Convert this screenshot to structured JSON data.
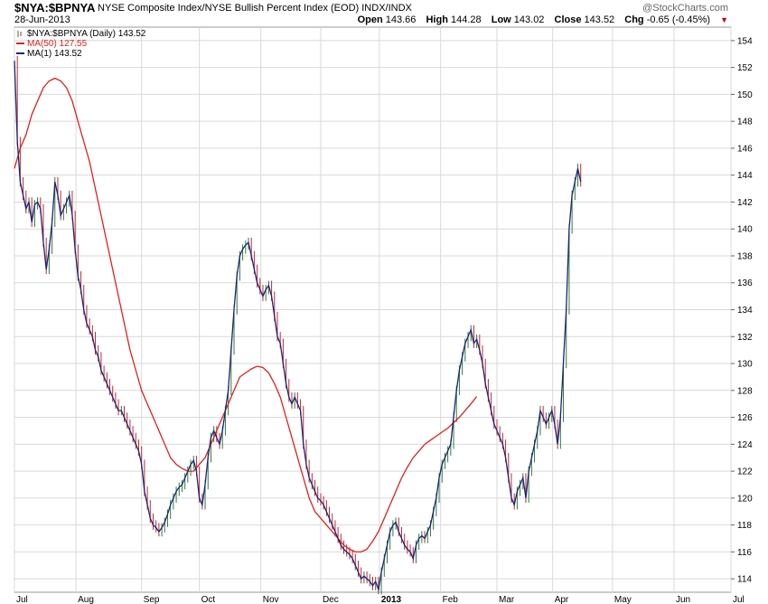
{
  "header": {
    "symbol": "$NYA:$BPNYA",
    "name": "NYSE Composite Index/NYSE Bullish Percent Index (EOD)",
    "exchange": "INDX/INDX",
    "date": "28-Jun-2013",
    "credit": "@StockCharts.com",
    "open_label": "Open",
    "open": "143.66",
    "high_label": "High",
    "high": "144.28",
    "low_label": "Low",
    "low": "143.02",
    "close_label": "Close",
    "close": "143.52",
    "chg_label": "Chg",
    "chg": "-0.65 (-0.45%)"
  },
  "legend": [
    {
      "text": "$NYA:$BPNYA (Daily) 143.52",
      "color": "#1a237e",
      "icon": "ohlc-bar-icon"
    },
    {
      "text": "MA(50) 127.55",
      "color": "#e0201c",
      "icon": "line-swatch-icon"
    },
    {
      "text": "MA(1) 143.52",
      "color": "#1a237e",
      "icon": "line-swatch-icon"
    }
  ],
  "chart_data": {
    "type": "line",
    "title": "$NYA:$BPNYA",
    "ylim": [
      113,
      155
    ],
    "y_ticks": [
      114,
      116,
      118,
      120,
      122,
      124,
      126,
      128,
      130,
      132,
      134,
      136,
      138,
      140,
      142,
      144,
      146,
      148,
      150,
      152,
      154
    ],
    "x_ticks": [
      {
        "label": "Jul",
        "t": 0
      },
      {
        "label": "Aug",
        "t": 21.3
      },
      {
        "label": "Sep",
        "t": 44.0
      },
      {
        "label": "Oct",
        "t": 64.0
      },
      {
        "label": "Nov",
        "t": 85.3
      },
      {
        "label": "Dec",
        "t": 106.0
      },
      {
        "label": "2013",
        "t": 126.3,
        "bold": true
      },
      {
        "label": "Feb",
        "t": 147.5
      },
      {
        "label": "Mar",
        "t": 167.0
      },
      {
        "label": "Apr",
        "t": 186.3
      },
      {
        "label": "May",
        "t": 207.0
      },
      {
        "label": "Jun",
        "t": 228.3
      },
      {
        "label": "Jul",
        "t": 248.0
      }
    ],
    "grid": true,
    "series": [
      {
        "name": "MA(1)",
        "color": "#1a237e",
        "points": [
          [
            0,
            152.5
          ],
          [
            1,
            146.5
          ],
          [
            2,
            143.5
          ],
          [
            3,
            142.5
          ],
          [
            4,
            141.5
          ],
          [
            5,
            142.0
          ],
          [
            6,
            140.5
          ],
          [
            7,
            141.8
          ],
          [
            8,
            142.0
          ],
          [
            9,
            141.5
          ],
          [
            10,
            139.0
          ],
          [
            11,
            137.0
          ],
          [
            12,
            138.5
          ],
          [
            13,
            140.5
          ],
          [
            14,
            143.5
          ],
          [
            15,
            142.5
          ],
          [
            16,
            141.0
          ],
          [
            17,
            141.5
          ],
          [
            18,
            142.0
          ],
          [
            19,
            142.5
          ],
          [
            20,
            141.0
          ],
          [
            21,
            138.5
          ],
          [
            22,
            136.5
          ],
          [
            23,
            135.5
          ],
          [
            24,
            134.0
          ],
          [
            25,
            133.0
          ],
          [
            26,
            132.5
          ],
          [
            27,
            132.0
          ],
          [
            28,
            131.0
          ],
          [
            29,
            130.5
          ],
          [
            30,
            129.5
          ],
          [
            31,
            129.0
          ],
          [
            32,
            128.5
          ],
          [
            33,
            128.0
          ],
          [
            34,
            127.5
          ],
          [
            35,
            127.0
          ],
          [
            36,
            126.5
          ],
          [
            37,
            126.5
          ],
          [
            38,
            126.0
          ],
          [
            39,
            125.5
          ],
          [
            40,
            125.0
          ],
          [
            41,
            124.5
          ],
          [
            42,
            124.0
          ],
          [
            43,
            123.5
          ],
          [
            44,
            122.5
          ],
          [
            45,
            120.5
          ],
          [
            46,
            119.5
          ],
          [
            47,
            118.5
          ],
          [
            48,
            118.0
          ],
          [
            49,
            117.8
          ],
          [
            50,
            117.5
          ],
          [
            51,
            117.8
          ],
          [
            52,
            118.2
          ],
          [
            53,
            118.8
          ],
          [
            54,
            119.5
          ],
          [
            55,
            120.0
          ],
          [
            56,
            120.5
          ],
          [
            57,
            120.8
          ],
          [
            58,
            121.0
          ],
          [
            59,
            121.5
          ],
          [
            60,
            122.0
          ],
          [
            61,
            122.5
          ],
          [
            62,
            122.8
          ],
          [
            63,
            122.0
          ],
          [
            64,
            120.0
          ],
          [
            65,
            119.5
          ],
          [
            66,
            121.0
          ],
          [
            67,
            123.0
          ],
          [
            68,
            124.5
          ],
          [
            69,
            125.0
          ],
          [
            70,
            124.5
          ],
          [
            71,
            124.0
          ],
          [
            72,
            125.0
          ],
          [
            73,
            126.5
          ],
          [
            74,
            128.0
          ],
          [
            75,
            131.0
          ],
          [
            76,
            134.0
          ],
          [
            77,
            136.5
          ],
          [
            78,
            138.0
          ],
          [
            79,
            138.5
          ],
          [
            80,
            138.8
          ],
          [
            81,
            139.0
          ],
          [
            82,
            138.0
          ],
          [
            83,
            137.0
          ],
          [
            84,
            136.0
          ],
          [
            85,
            135.5
          ],
          [
            86,
            135.0
          ],
          [
            87,
            135.5
          ],
          [
            88,
            135.8
          ],
          [
            89,
            135.0
          ],
          [
            90,
            133.5
          ],
          [
            91,
            132.0
          ],
          [
            92,
            131.5
          ],
          [
            93,
            130.0
          ],
          [
            94,
            128.5
          ],
          [
            95,
            127.5
          ],
          [
            96,
            127.0
          ],
          [
            97,
            127.5
          ],
          [
            98,
            127.0
          ],
          [
            99,
            126.5
          ],
          [
            100,
            124.0
          ],
          [
            101,
            122.5
          ],
          [
            102,
            121.5
          ],
          [
            103,
            121.0
          ],
          [
            104,
            120.5
          ],
          [
            105,
            120.0
          ],
          [
            106,
            119.8
          ],
          [
            107,
            119.5
          ],
          [
            108,
            119.0
          ],
          [
            109,
            118.5
          ],
          [
            110,
            118.0
          ],
          [
            111,
            117.5
          ],
          [
            112,
            117.0
          ],
          [
            113,
            116.5
          ],
          [
            114,
            116.2
          ],
          [
            115,
            116.0
          ],
          [
            116,
            115.8
          ],
          [
            117,
            115.5
          ],
          [
            118,
            115.0
          ],
          [
            119,
            114.5
          ],
          [
            120,
            114.0
          ],
          [
            121,
            114.2
          ],
          [
            122,
            114.0
          ],
          [
            123,
            113.8
          ],
          [
            124,
            113.5
          ],
          [
            125,
            113.8
          ],
          [
            126,
            113.2
          ],
          [
            127,
            114.5
          ],
          [
            128,
            115.5
          ],
          [
            129,
            116.5
          ],
          [
            130,
            117.5
          ],
          [
            131,
            118.0
          ],
          [
            132,
            118.2
          ],
          [
            133,
            117.5
          ],
          [
            134,
            117.0
          ],
          [
            135,
            116.5
          ],
          [
            136,
            116.2
          ],
          [
            137,
            116.0
          ],
          [
            138,
            115.5
          ],
          [
            139,
            116.5
          ],
          [
            140,
            117.0
          ],
          [
            141,
            117.2
          ],
          [
            142,
            117.0
          ],
          [
            143,
            117.5
          ],
          [
            144,
            118.0
          ],
          [
            145,
            119.0
          ],
          [
            146,
            120.0
          ],
          [
            147,
            121.5
          ],
          [
            148,
            122.5
          ],
          [
            149,
            123.0
          ],
          [
            150,
            123.5
          ],
          [
            151,
            124.0
          ],
          [
            152,
            126.0
          ],
          [
            153,
            128.0
          ],
          [
            154,
            129.5
          ],
          [
            155,
            130.5
          ],
          [
            156,
            131.5
          ],
          [
            157,
            132.0
          ],
          [
            158,
            132.5
          ],
          [
            159,
            131.5
          ],
          [
            160,
            131.8
          ],
          [
            161,
            131.0
          ],
          [
            162,
            130.0
          ],
          [
            163,
            128.5
          ],
          [
            164,
            127.5
          ],
          [
            165,
            126.5
          ],
          [
            166,
            125.5
          ],
          [
            167,
            125.0
          ],
          [
            168,
            124.5
          ],
          [
            169,
            124.0
          ],
          [
            170,
            123.0
          ],
          [
            171,
            121.5
          ],
          [
            172,
            120.0
          ],
          [
            173,
            119.5
          ],
          [
            174,
            120.5
          ],
          [
            175,
            121.0
          ],
          [
            176,
            121.5
          ],
          [
            177,
            120.0
          ],
          [
            178,
            122.0
          ],
          [
            179,
            123.0
          ],
          [
            180,
            124.0
          ],
          [
            181,
            125.0
          ],
          [
            182,
            126.5
          ],
          [
            183,
            126.0
          ],
          [
            184,
            125.5
          ],
          [
            185,
            126.0
          ],
          [
            186,
            126.5
          ],
          [
            187,
            125.5
          ],
          [
            188,
            124.0
          ],
          [
            189,
            126.0
          ],
          [
            190,
            130.0
          ],
          [
            191,
            134.0
          ],
          [
            192,
            140.0
          ],
          [
            193,
            142.5
          ],
          [
            194,
            143.5
          ],
          [
            195,
            144.5
          ],
          [
            196,
            143.5
          ]
        ]
      },
      {
        "name": "MA(50)",
        "color": "#e0201c",
        "points": [
          [
            0,
            144.5
          ],
          [
            2,
            146.0
          ],
          [
            4,
            147.0
          ],
          [
            6,
            148.5
          ],
          [
            8,
            149.5
          ],
          [
            10,
            150.5
          ],
          [
            12,
            151.0
          ],
          [
            14,
            151.2
          ],
          [
            16,
            151.0
          ],
          [
            18,
            150.5
          ],
          [
            20,
            149.5
          ],
          [
            22,
            148.0
          ],
          [
            24,
            146.5
          ],
          [
            26,
            145.0
          ],
          [
            28,
            143.0
          ],
          [
            30,
            141.0
          ],
          [
            32,
            139.0
          ],
          [
            34,
            137.0
          ],
          [
            36,
            135.0
          ],
          [
            38,
            133.0
          ],
          [
            40,
            131.0
          ],
          [
            42,
            129.5
          ],
          [
            44,
            128.0
          ],
          [
            46,
            127.0
          ],
          [
            48,
            126.0
          ],
          [
            50,
            125.0
          ],
          [
            52,
            124.0
          ],
          [
            54,
            123.0
          ],
          [
            56,
            122.5
          ],
          [
            58,
            122.2
          ],
          [
            60,
            122.0
          ],
          [
            62,
            122.0
          ],
          [
            64,
            122.5
          ],
          [
            66,
            123.0
          ],
          [
            68,
            124.0
          ],
          [
            70,
            125.0
          ],
          [
            72,
            126.0
          ],
          [
            74,
            127.0
          ],
          [
            76,
            128.0
          ],
          [
            78,
            129.0
          ],
          [
            80,
            129.3
          ],
          [
            82,
            129.6
          ],
          [
            84,
            129.8
          ],
          [
            86,
            129.7
          ],
          [
            88,
            129.3
          ],
          [
            90,
            128.5
          ],
          [
            92,
            127.5
          ],
          [
            94,
            126.0
          ],
          [
            96,
            124.5
          ],
          [
            98,
            123.0
          ],
          [
            100,
            121.5
          ],
          [
            102,
            120.0
          ],
          [
            104,
            119.0
          ],
          [
            106,
            118.5
          ],
          [
            108,
            118.0
          ],
          [
            110,
            117.5
          ],
          [
            112,
            117.0
          ],
          [
            114,
            116.5
          ],
          [
            116,
            116.2
          ],
          [
            118,
            116.0
          ],
          [
            120,
            116.0
          ],
          [
            122,
            116.2
          ],
          [
            124,
            116.8
          ],
          [
            126,
            117.5
          ],
          [
            128,
            118.5
          ],
          [
            130,
            119.5
          ],
          [
            132,
            120.5
          ],
          [
            134,
            121.5
          ],
          [
            136,
            122.3
          ],
          [
            138,
            123.0
          ],
          [
            140,
            123.5
          ],
          [
            142,
            124.0
          ],
          [
            144,
            124.3
          ],
          [
            146,
            124.6
          ],
          [
            148,
            124.9
          ],
          [
            150,
            125.2
          ],
          [
            152,
            125.6
          ],
          [
            154,
            126.0
          ],
          [
            156,
            126.5
          ],
          [
            158,
            127.0
          ],
          [
            160,
            127.55
          ]
        ]
      }
    ]
  }
}
